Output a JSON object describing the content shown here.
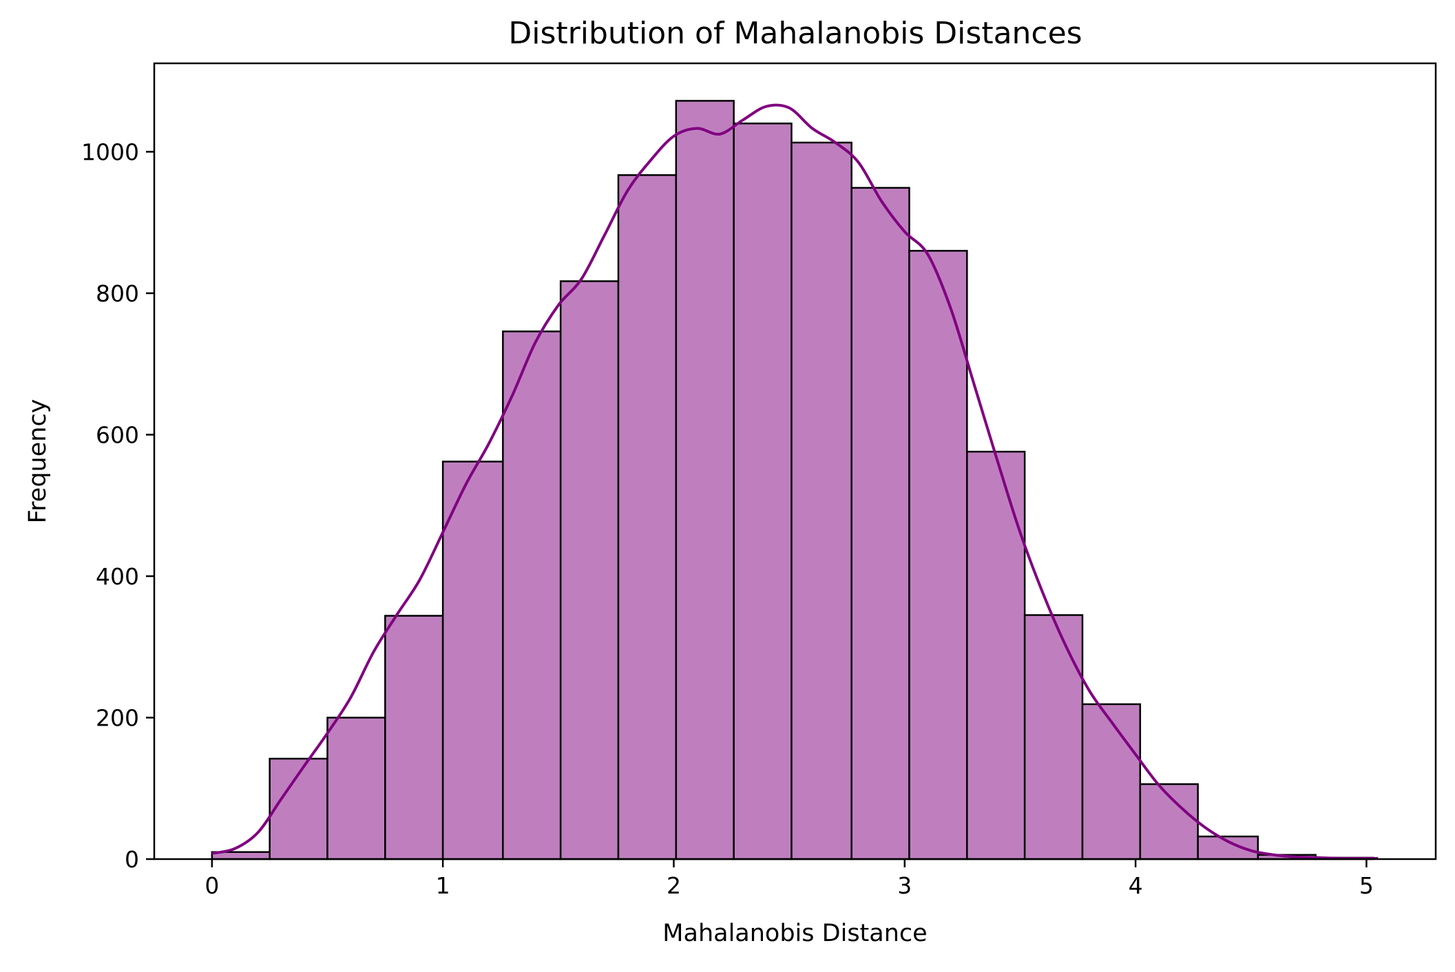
{
  "chart_data": {
    "type": "bar",
    "title": "Distribution of Mahalanobis Distances",
    "xlabel": "Mahalanobis Distance",
    "ylabel": "Frequency",
    "xlim": [
      -0.25,
      5.3
    ],
    "ylim": [
      0,
      1125
    ],
    "x_ticks": [
      0,
      1,
      2,
      3,
      4,
      5
    ],
    "y_ticks": [
      0,
      200,
      400,
      600,
      800,
      1000
    ],
    "bin_edges": [
      0.0,
      0.25,
      0.5,
      0.75,
      1.0,
      1.26,
      1.51,
      1.76,
      2.01,
      2.26,
      2.51,
      2.77,
      3.02,
      3.27,
      3.52,
      3.77,
      4.02,
      4.27,
      4.53,
      4.78,
      5.03
    ],
    "values": [
      10,
      142,
      200,
      344,
      562,
      746,
      817,
      967,
      1072,
      1040,
      1013,
      949,
      860,
      576,
      345,
      219,
      106,
      32,
      6,
      2
    ],
    "kde": {
      "x": [
        0.0,
        0.1,
        0.2,
        0.3,
        0.4,
        0.5,
        0.6,
        0.7,
        0.8,
        0.9,
        1.0,
        1.1,
        1.2,
        1.3,
        1.4,
        1.5,
        1.6,
        1.7,
        1.8,
        1.9,
        2.0,
        2.1,
        2.2,
        2.3,
        2.4,
        2.5,
        2.6,
        2.7,
        2.8,
        2.9,
        3.0,
        3.1,
        3.2,
        3.3,
        3.4,
        3.5,
        3.6,
        3.7,
        3.8,
        3.9,
        4.0,
        4.1,
        4.2,
        4.3,
        4.4,
        4.5,
        4.6,
        4.7,
        4.8,
        4.9,
        5.05
      ],
      "y": [
        8,
        15,
        38,
        85,
        132,
        178,
        228,
        293,
        345,
        395,
        462,
        530,
        588,
        655,
        730,
        783,
        820,
        882,
        945,
        988,
        1022,
        1033,
        1025,
        1045,
        1064,
        1062,
        1033,
        1013,
        985,
        930,
        887,
        855,
        778,
        672,
        565,
        462,
        375,
        300,
        238,
        192,
        148,
        105,
        72,
        45,
        25,
        12,
        6,
        3,
        2,
        1,
        1
      ]
    },
    "colors": {
      "bar_fill": "#bf7fbf",
      "bar_edge": "#000000",
      "kde_line": "#800080"
    },
    "grid": false,
    "legend": "none"
  }
}
